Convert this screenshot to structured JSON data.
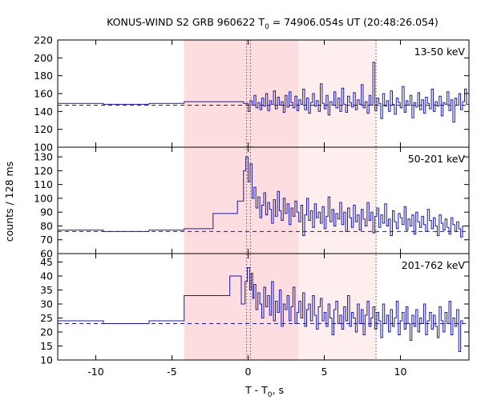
{
  "chart_data": {
    "type": "line",
    "title_prefix": "KONUS-WIND S2 GRB 960622 T",
    "title_sub": "0",
    "title_suffix": " = 74906.054s UT (20:48:26.054)",
    "xlabel_prefix": "T - T",
    "xlabel_sub": "0",
    "xlabel_suffix": ", s",
    "ylabel": "counts / 128 ms",
    "xlim": [
      -12.5,
      14.5
    ],
    "x_ticks": [
      -10,
      -5,
      0,
      5,
      10
    ],
    "x_tick_labels": [
      "-10",
      "-5",
      "0",
      "5",
      "10"
    ],
    "shaded_regions": [
      {
        "x0": -4.2,
        "x1": 3.3,
        "color": "#fddde0"
      },
      {
        "x0": 3.3,
        "x1": 8.4,
        "color": "#feeeee"
      }
    ],
    "vlines_dotted": [
      -0.1,
      0.15,
      8.4
    ],
    "panels": [
      {
        "label": "13-50 keV",
        "ylim": [
          100,
          220
        ],
        "y_ticks": [
          100,
          120,
          140,
          160,
          180,
          200,
          220
        ],
        "y_tick_labels": [
          "100",
          "120",
          "140",
          "160",
          "180",
          "200",
          "220"
        ],
        "background": 147,
        "step_x": [
          -12.5,
          -9.5,
          -6.5,
          -4.2,
          -0.3,
          0.0,
          0.128,
          0.256,
          0.384,
          0.512,
          0.64,
          0.768,
          0.896,
          1.024,
          1.152,
          1.28,
          1.408,
          1.536,
          1.664,
          1.792,
          1.92,
          2.048,
          2.176,
          2.304,
          2.432,
          2.56,
          2.688,
          2.816,
          2.944,
          3.072,
          3.2,
          3.328,
          3.456,
          3.584,
          3.712,
          3.84,
          3.968,
          4.096,
          4.224,
          4.352,
          4.48,
          4.608,
          4.736,
          4.864,
          4.992,
          5.12,
          5.248,
          5.376,
          5.504,
          5.632,
          5.76,
          5.888,
          6.016,
          6.144,
          6.272,
          6.4,
          6.528,
          6.656,
          6.784,
          6.912,
          7.04,
          7.168,
          7.296,
          7.424,
          7.552,
          7.68,
          7.808,
          7.936,
          8.064,
          8.192,
          8.32,
          8.448,
          8.576,
          8.704,
          8.832,
          8.96,
          9.088,
          9.216,
          9.344,
          9.472,
          9.6,
          9.728,
          9.856,
          9.984,
          10.112,
          10.24,
          10.368,
          10.496,
          10.624,
          10.752,
          10.88,
          11.008,
          11.136,
          11.264,
          11.392,
          11.52,
          11.648,
          11.776,
          11.904,
          12.032,
          12.16,
          12.288,
          12.416,
          12.544,
          12.672,
          12.8,
          12.928,
          13.056,
          13.184,
          13.312,
          13.44,
          13.568,
          13.696,
          13.824,
          13.952,
          14.08,
          14.208,
          14.336,
          14.5
        ],
        "step_y": [
          149,
          148,
          149,
          151,
          149,
          140,
          152,
          147,
          158,
          144,
          150,
          142,
          155,
          146,
          160,
          141,
          152,
          148,
          163,
          143,
          156,
          147,
          151,
          139,
          158,
          145,
          162,
          150,
          144,
          157,
          141,
          153,
          148,
          165,
          142,
          155,
          138,
          150,
          160,
          146,
          152,
          140,
          171,
          149,
          143,
          158,
          136,
          151,
          147,
          162,
          144,
          155,
          140,
          166,
          148,
          139,
          157,
          150,
          145,
          161,
          142,
          153,
          148,
          170,
          144,
          151,
          138,
          158,
          147,
          195,
          141,
          155,
          149,
          132,
          160,
          146,
          152,
          140,
          163,
          148,
          137,
          155,
          150,
          144,
          168,
          139,
          152,
          147,
          158,
          133,
          150,
          145,
          161,
          142,
          153,
          138,
          156,
          149,
          143,
          165,
          140,
          151,
          146,
          157,
          135,
          150,
          148,
          162,
          141,
          153,
          128,
          155,
          147,
          160,
          142,
          151,
          165,
          148,
          149
        ]
      },
      {
        "label": "50-201 keV",
        "ylim": [
          60,
          137
        ],
        "y_ticks": [
          60,
          70,
          80,
          90,
          100,
          110,
          120,
          130
        ],
        "y_tick_labels": [
          "60",
          "70",
          "80",
          "90",
          "100",
          "110",
          "120",
          "130"
        ],
        "background": 76,
        "step_x": [
          -12.5,
          -9.5,
          -6.5,
          -4.2,
          -2.3,
          -0.7,
          -0.3,
          -0.15,
          0.0,
          0.128,
          0.256,
          0.384,
          0.512,
          0.64,
          0.768,
          0.896,
          1.024,
          1.152,
          1.28,
          1.408,
          1.536,
          1.664,
          1.792,
          1.92,
          2.048,
          2.176,
          2.304,
          2.432,
          2.56,
          2.688,
          2.816,
          2.944,
          3.072,
          3.2,
          3.328,
          3.456,
          3.584,
          3.712,
          3.84,
          3.968,
          4.096,
          4.224,
          4.352,
          4.48,
          4.608,
          4.736,
          4.864,
          4.992,
          5.12,
          5.248,
          5.376,
          5.504,
          5.632,
          5.76,
          5.888,
          6.016,
          6.144,
          6.272,
          6.4,
          6.528,
          6.656,
          6.784,
          6.912,
          7.04,
          7.168,
          7.296,
          7.424,
          7.552,
          7.68,
          7.808,
          7.936,
          8.064,
          8.192,
          8.32,
          8.448,
          8.576,
          8.704,
          8.832,
          8.96,
          9.088,
          9.216,
          9.344,
          9.472,
          9.6,
          9.728,
          9.856,
          9.984,
          10.112,
          10.24,
          10.368,
          10.496,
          10.624,
          10.752,
          10.88,
          11.008,
          11.136,
          11.264,
          11.392,
          11.52,
          11.648,
          11.776,
          11.904,
          12.032,
          12.16,
          12.288,
          12.416,
          12.544,
          12.672,
          12.8,
          12.928,
          13.056,
          13.184,
          13.312,
          13.44,
          13.568,
          13.696,
          13.824,
          13.952,
          14.08,
          14.208,
          14.336,
          14.5
        ],
        "step_y": [
          77,
          76,
          77,
          78,
          89,
          98,
          120,
          130,
          112,
          125,
          100,
          108,
          93,
          101,
          86,
          95,
          104,
          88,
          97,
          92,
          82,
          99,
          87,
          105,
          91,
          84,
          100,
          89,
          96,
          81,
          93,
          87,
          98,
          90,
          83,
          95,
          73,
          88,
          100,
          84,
          91,
          79,
          96,
          86,
          90,
          82,
          94,
          78,
          87,
          101,
          83,
          92,
          80,
          89,
          85,
          97,
          81,
          90,
          76,
          93,
          86,
          79,
          95,
          83,
          88,
          77,
          92,
          85,
          80,
          97,
          84,
          90,
          75,
          87,
          93,
          79,
          88,
          82,
          96,
          80,
          85,
          73,
          91,
          83,
          78,
          89,
          86,
          81,
          94,
          77,
          85,
          80,
          88,
          74,
          90,
          83,
          79,
          87,
          81,
          76,
          92,
          84,
          78,
          86,
          80,
          73,
          88,
          82,
          77,
          85,
          79,
          74,
          86,
          81,
          76,
          83,
          78,
          72,
          80
        ]
      },
      {
        "label": "201-762 keV",
        "ylim": [
          10,
          48
        ],
        "y_ticks": [
          10,
          15,
          20,
          25,
          30,
          35,
          40,
          45
        ],
        "y_tick_labels": [
          "10",
          "15",
          "20",
          "25",
          "30",
          "35",
          "40",
          "45"
        ],
        "background": 23,
        "step_x": [
          -12.5,
          -9.5,
          -6.5,
          -4.2,
          -1.2,
          -0.45,
          -0.2,
          -0.05,
          0.1,
          0.2,
          0.3,
          0.384,
          0.512,
          0.64,
          0.768,
          0.896,
          1.024,
          1.152,
          1.28,
          1.408,
          1.536,
          1.664,
          1.792,
          1.92,
          2.048,
          2.176,
          2.304,
          2.432,
          2.56,
          2.688,
          2.816,
          2.944,
          3.072,
          3.2,
          3.328,
          3.456,
          3.584,
          3.712,
          3.84,
          3.968,
          4.096,
          4.224,
          4.352,
          4.48,
          4.608,
          4.736,
          4.864,
          4.992,
          5.12,
          5.248,
          5.376,
          5.504,
          5.632,
          5.76,
          5.888,
          6.016,
          6.144,
          6.272,
          6.4,
          6.528,
          6.656,
          6.784,
          6.912,
          7.04,
          7.168,
          7.296,
          7.424,
          7.552,
          7.68,
          7.808,
          7.936,
          8.064,
          8.192,
          8.32,
          8.448,
          8.576,
          8.704,
          8.832,
          8.96,
          9.088,
          9.216,
          9.344,
          9.472,
          9.6,
          9.728,
          9.856,
          9.984,
          10.112,
          10.24,
          10.368,
          10.496,
          10.624,
          10.752,
          10.88,
          11.008,
          11.136,
          11.264,
          11.392,
          11.52,
          11.648,
          11.776,
          11.904,
          12.032,
          12.16,
          12.288,
          12.416,
          12.544,
          12.672,
          12.8,
          12.928,
          13.056,
          13.184,
          13.312,
          13.44,
          13.568,
          13.696,
          13.824,
          13.952,
          14.08,
          14.208,
          14.336,
          14.5
        ],
        "step_y": [
          24,
          23,
          24,
          33,
          40,
          30,
          38,
          43,
          35,
          41,
          32,
          37,
          28,
          34,
          30,
          25,
          36,
          29,
          33,
          26,
          38,
          24,
          31,
          27,
          35,
          22,
          30,
          28,
          33,
          24,
          29,
          36,
          23,
          27,
          31,
          25,
          34,
          22,
          28,
          30,
          24,
          33,
          26,
          21,
          29,
          32,
          24,
          27,
          22,
          30,
          25,
          19,
          28,
          31,
          23,
          26,
          21,
          29,
          24,
          33,
          22,
          27,
          25,
          20,
          30,
          23,
          28,
          19,
          26,
          31,
          22,
          25,
          29,
          21,
          27,
          24,
          18,
          30,
          23,
          26,
          20,
          28,
          22,
          25,
          31,
          19,
          24,
          27,
          21,
          29,
          23,
          17,
          26,
          22,
          28,
          20,
          25,
          23,
          30,
          19,
          24,
          27,
          21,
          26,
          22,
          18,
          29,
          24,
          20,
          27,
          23,
          31,
          19,
          25,
          22,
          28,
          13,
          24,
          23
        ]
      }
    ]
  }
}
